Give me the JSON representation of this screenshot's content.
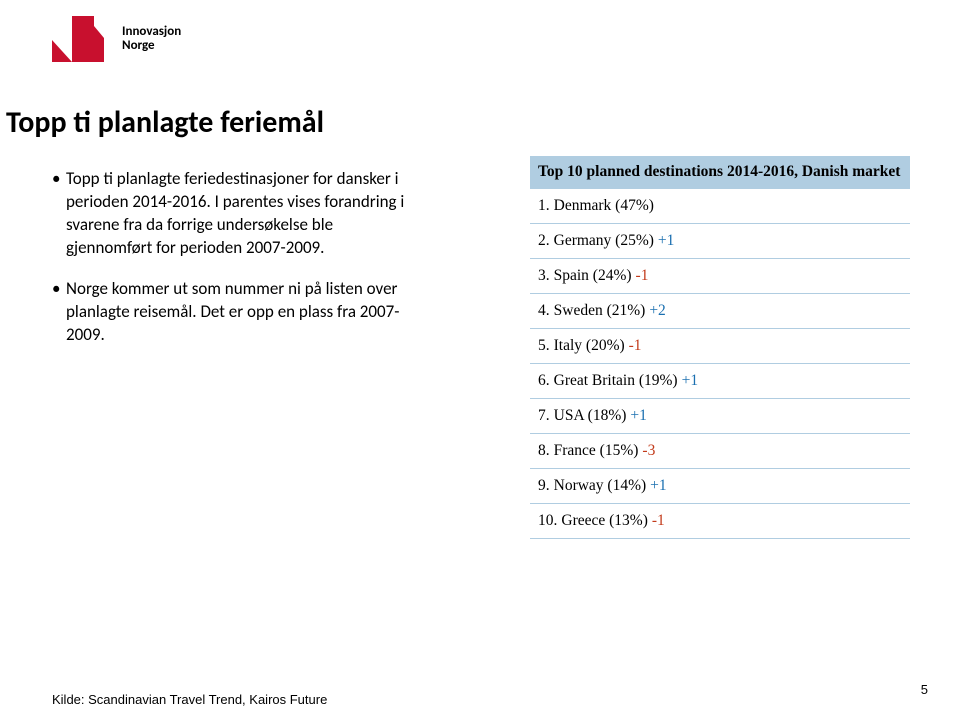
{
  "logo": {
    "brand_line1": "Innovasjon",
    "brand_line2": "Norge"
  },
  "title": "Topp ti planlagte feriemål",
  "body": {
    "p1_prefix": "• ",
    "p1": "Topp ti planlagte feriedestinasjoner for dansker i perioden 2014-2016. I parentes vises forandring i svarene fra da forrige undersøkelse ble gjennomført for perioden 2007-2009.",
    "p2_prefix": "• ",
    "p2": "Norge kommer ut som nummer ni på listen over planlagte reisemål. Det er opp en plass fra 2007-2009."
  },
  "table": {
    "header": "Top 10 planned destinations 2014-2016, Danish market",
    "header_bg": "#b0cde1",
    "border_color": "#b0cde1",
    "pos_color": "#1a6fb0",
    "neg_color": "#c23a1a",
    "rows": [
      {
        "n": "1.",
        "label": "Denmark (47%)",
        "delta": ""
      },
      {
        "n": "2.",
        "label": "Germany (25%)",
        "delta": "+1"
      },
      {
        "n": "3.",
        "label": "Spain (24%)",
        "delta": "-1"
      },
      {
        "n": "4.",
        "label": "Sweden (21%)",
        "delta": "+2"
      },
      {
        "n": "5.",
        "label": "Italy (20%)",
        "delta": "-1"
      },
      {
        "n": "6.",
        "label": "Great Britain (19%)",
        "delta": "+1"
      },
      {
        "n": "7.",
        "label": "USA (18%)",
        "delta": "+1"
      },
      {
        "n": "8.",
        "label": "France (15%)",
        "delta": "-3"
      },
      {
        "n": "9.",
        "label": "Norway (14%)",
        "delta": "+1"
      },
      {
        "n": "10.",
        "label": "Greece (13%)",
        "delta": "-1"
      }
    ]
  },
  "source": "Kilde: Scandinavian Travel Trend, Kairos Future",
  "page_number": "5"
}
